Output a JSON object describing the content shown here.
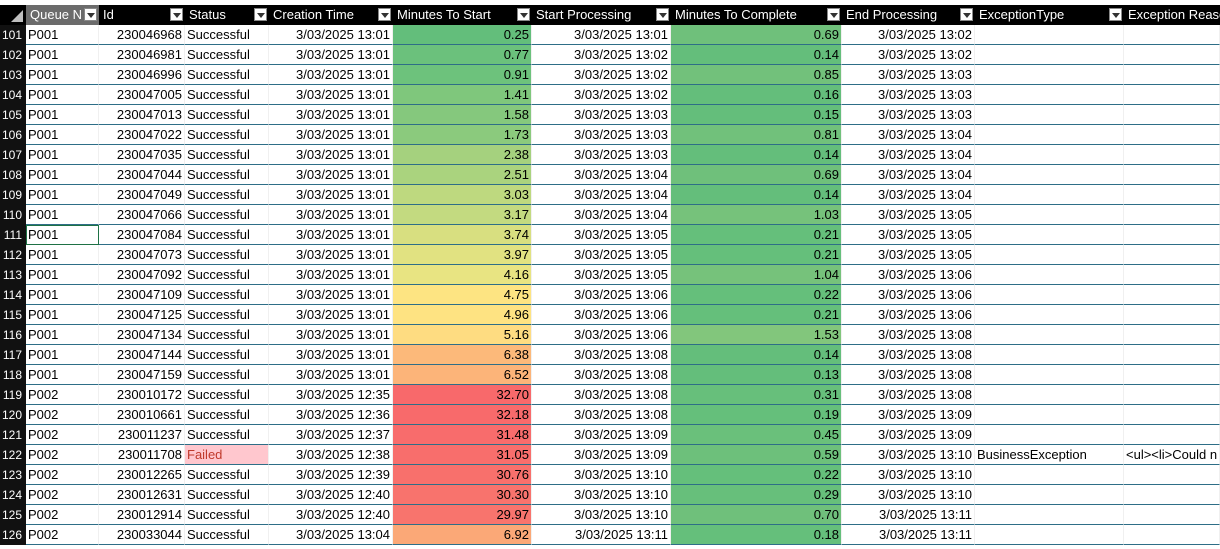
{
  "headers": [
    "Queue N",
    "Id",
    "Status",
    "Creation Time",
    "Minutes To Start",
    "Start Processing",
    "Minutes To Complete",
    "End Processing",
    "ExceptionType",
    "Exception Reaso"
  ],
  "rows": [
    {
      "n": "101",
      "queue": "P001",
      "id": "230046968",
      "status": "Successful",
      "created": "3/03/2025 13:01",
      "mts": "0.25",
      "start": "3/03/2025 13:01",
      "mtc": "0.69",
      "end": "3/03/2025 13:02",
      "etype": "",
      "ereason": "",
      "mts_color": "#63be7b",
      "mtc_color": "#6fc07b"
    },
    {
      "n": "102",
      "queue": "P001",
      "id": "230046981",
      "status": "Successful",
      "created": "3/03/2025 13:01",
      "mts": "0.77",
      "start": "3/03/2025 13:02",
      "mtc": "0.14",
      "end": "3/03/2025 13:02",
      "etype": "",
      "ereason": "",
      "mts_color": "#6bc17c",
      "mtc_color": "#64be7b"
    },
    {
      "n": "103",
      "queue": "P001",
      "id": "230046996",
      "status": "Successful",
      "created": "3/03/2025 13:01",
      "mts": "0.91",
      "start": "3/03/2025 13:02",
      "mtc": "0.85",
      "end": "3/03/2025 13:03",
      "etype": "",
      "ereason": "",
      "mts_color": "#6dc27c",
      "mtc_color": "#72c17b"
    },
    {
      "n": "104",
      "queue": "P001",
      "id": "230047005",
      "status": "Successful",
      "created": "3/03/2025 13:01",
      "mts": "1.41",
      "start": "3/03/2025 13:02",
      "mtc": "0.16",
      "end": "3/03/2025 13:03",
      "etype": "",
      "ereason": "",
      "mts_color": "#7fc77c",
      "mtc_color": "#64be7b"
    },
    {
      "n": "105",
      "queue": "P001",
      "id": "230047013",
      "status": "Successful",
      "created": "3/03/2025 13:01",
      "mts": "1.58",
      "start": "3/03/2025 13:03",
      "mtc": "0.15",
      "end": "3/03/2025 13:03",
      "etype": "",
      "ereason": "",
      "mts_color": "#85c87d",
      "mtc_color": "#64be7b"
    },
    {
      "n": "106",
      "queue": "P001",
      "id": "230047022",
      "status": "Successful",
      "created": "3/03/2025 13:01",
      "mts": "1.73",
      "start": "3/03/2025 13:03",
      "mtc": "0.81",
      "end": "3/03/2025 13:04",
      "etype": "",
      "ereason": "",
      "mts_color": "#8bca7d",
      "mtc_color": "#71c17b"
    },
    {
      "n": "107",
      "queue": "P001",
      "id": "230047035",
      "status": "Successful",
      "created": "3/03/2025 13:01",
      "mts": "2.38",
      "start": "3/03/2025 13:03",
      "mtc": "0.14",
      "end": "3/03/2025 13:04",
      "etype": "",
      "ereason": "",
      "mts_color": "#a5d17e",
      "mtc_color": "#64be7b"
    },
    {
      "n": "108",
      "queue": "P001",
      "id": "230047044",
      "status": "Successful",
      "created": "3/03/2025 13:01",
      "mts": "2.51",
      "start": "3/03/2025 13:04",
      "mtc": "0.69",
      "end": "3/03/2025 13:04",
      "etype": "",
      "ereason": "",
      "mts_color": "#aad37e",
      "mtc_color": "#6fc07b"
    },
    {
      "n": "109",
      "queue": "P001",
      "id": "230047049",
      "status": "Successful",
      "created": "3/03/2025 13:01",
      "mts": "3.03",
      "start": "3/03/2025 13:04",
      "mtc": "0.14",
      "end": "3/03/2025 13:04",
      "etype": "",
      "ereason": "",
      "mts_color": "#bed97f",
      "mtc_color": "#64be7b"
    },
    {
      "n": "110",
      "queue": "P001",
      "id": "230047066",
      "status": "Successful",
      "created": "3/03/2025 13:01",
      "mts": "3.17",
      "start": "3/03/2025 13:04",
      "mtc": "1.03",
      "end": "3/03/2025 13:05",
      "etype": "",
      "ereason": "",
      "mts_color": "#c3da80",
      "mtc_color": "#76c27b"
    },
    {
      "n": "111",
      "queue": "P001",
      "id": "230047084",
      "status": "Successful",
      "created": "3/03/2025 13:01",
      "mts": "3.74",
      "start": "3/03/2025 13:05",
      "mtc": "0.21",
      "end": "3/03/2025 13:05",
      "etype": "",
      "ereason": "",
      "mts_color": "#d8df80",
      "mtc_color": "#65bf7b"
    },
    {
      "n": "112",
      "queue": "P001",
      "id": "230047073",
      "status": "Successful",
      "created": "3/03/2025 13:01",
      "mts": "3.97",
      "start": "3/03/2025 13:05",
      "mtc": "0.21",
      "end": "3/03/2025 13:05",
      "etype": "",
      "ereason": "",
      "mts_color": "#e1e281",
      "mtc_color": "#65bf7b"
    },
    {
      "n": "113",
      "queue": "P001",
      "id": "230047092",
      "status": "Successful",
      "created": "3/03/2025 13:01",
      "mts": "4.16",
      "start": "3/03/2025 13:05",
      "mtc": "1.04",
      "end": "3/03/2025 13:06",
      "etype": "",
      "ereason": "",
      "mts_color": "#e8e482",
      "mtc_color": "#76c27b"
    },
    {
      "n": "114",
      "queue": "P001",
      "id": "230047109",
      "status": "Successful",
      "created": "3/03/2025 13:01",
      "mts": "4.75",
      "start": "3/03/2025 13:06",
      "mtc": "0.22",
      "end": "3/03/2025 13:06",
      "etype": "",
      "ereason": "",
      "mts_color": "#fde482",
      "mtc_color": "#65bf7b"
    },
    {
      "n": "115",
      "queue": "P001",
      "id": "230047125",
      "status": "Successful",
      "created": "3/03/2025 13:01",
      "mts": "4.96",
      "start": "3/03/2025 13:06",
      "mtc": "0.21",
      "end": "3/03/2025 13:06",
      "etype": "",
      "ereason": "",
      "mts_color": "#fee382",
      "mtc_color": "#65bf7b"
    },
    {
      "n": "116",
      "queue": "P001",
      "id": "230047134",
      "status": "Successful",
      "created": "3/03/2025 13:01",
      "mts": "5.16",
      "start": "3/03/2025 13:06",
      "mtc": "1.53",
      "end": "3/03/2025 13:08",
      "etype": "",
      "ereason": "",
      "mts_color": "#fedc81",
      "mtc_color": "#82c67c"
    },
    {
      "n": "117",
      "queue": "P001",
      "id": "230047144",
      "status": "Successful",
      "created": "3/03/2025 13:01",
      "mts": "6.38",
      "start": "3/03/2025 13:08",
      "mtc": "0.14",
      "end": "3/03/2025 13:08",
      "etype": "",
      "ereason": "",
      "mts_color": "#fcb97a",
      "mtc_color": "#64be7b"
    },
    {
      "n": "118",
      "queue": "P001",
      "id": "230047159",
      "status": "Successful",
      "created": "3/03/2025 13:01",
      "mts": "6.52",
      "start": "3/03/2025 13:08",
      "mtc": "0.13",
      "end": "3/03/2025 13:08",
      "etype": "",
      "ereason": "",
      "mts_color": "#fcb479",
      "mtc_color": "#64be7b"
    },
    {
      "n": "119",
      "queue": "P002",
      "id": "230010172",
      "status": "Successful",
      "created": "3/03/2025 12:35",
      "mts": "32.70",
      "start": "3/03/2025 13:08",
      "mtc": "0.31",
      "end": "3/03/2025 13:08",
      "etype": "",
      "ereason": "",
      "mts_color": "#f8696b",
      "mtc_color": "#67bf7b"
    },
    {
      "n": "120",
      "queue": "P002",
      "id": "230010661",
      "status": "Successful",
      "created": "3/03/2025 12:36",
      "mts": "32.18",
      "start": "3/03/2025 13:08",
      "mtc": "0.19",
      "end": "3/03/2025 13:09",
      "etype": "",
      "ereason": "",
      "mts_color": "#f86a6b",
      "mtc_color": "#65bf7b"
    },
    {
      "n": "121",
      "queue": "P002",
      "id": "230011237",
      "status": "Successful",
      "created": "3/03/2025 12:37",
      "mts": "31.48",
      "start": "3/03/2025 13:09",
      "mtc": "0.45",
      "end": "3/03/2025 13:09",
      "etype": "",
      "ereason": "",
      "mts_color": "#f86c6c",
      "mtc_color": "#6ac07b"
    },
    {
      "n": "122",
      "queue": "P002",
      "id": "230011708",
      "status": "Failed",
      "created": "3/03/2025 12:38",
      "mts": "31.05",
      "start": "3/03/2025 13:09",
      "mtc": "0.59",
      "end": "3/03/2025 13:10",
      "etype": "BusinessException",
      "ereason": "<ul><li>Could n",
      "mts_color": "#f86e6c",
      "mtc_color": "#6dc07b"
    },
    {
      "n": "123",
      "queue": "P002",
      "id": "230012265",
      "status": "Successful",
      "created": "3/03/2025 12:39",
      "mts": "30.76",
      "start": "3/03/2025 13:10",
      "mtc": "0.22",
      "end": "3/03/2025 13:10",
      "etype": "",
      "ereason": "",
      "mts_color": "#f8706c",
      "mtc_color": "#65bf7b"
    },
    {
      "n": "124",
      "queue": "P002",
      "id": "230012631",
      "status": "Successful",
      "created": "3/03/2025 12:40",
      "mts": "30.30",
      "start": "3/03/2025 13:10",
      "mtc": "0.29",
      "end": "3/03/2025 13:10",
      "etype": "",
      "ereason": "",
      "mts_color": "#f8736d",
      "mtc_color": "#67bf7b"
    },
    {
      "n": "125",
      "queue": "P002",
      "id": "230012914",
      "status": "Successful",
      "created": "3/03/2025 12:40",
      "mts": "29.97",
      "start": "3/03/2025 13:10",
      "mtc": "0.70",
      "end": "3/03/2025 13:11",
      "etype": "",
      "ereason": "",
      "mts_color": "#f8746d",
      "mtc_color": "#6fc07b"
    },
    {
      "n": "126",
      "queue": "P002",
      "id": "230033044",
      "status": "Successful",
      "created": "3/03/2025 13:04",
      "mts": "6.92",
      "start": "3/03/2025 13:11",
      "mtc": "0.18",
      "end": "3/03/2025 13:11",
      "etype": "",
      "ereason": "",
      "mts_color": "#fba877",
      "mtc_color": "#65bf7b"
    }
  ]
}
